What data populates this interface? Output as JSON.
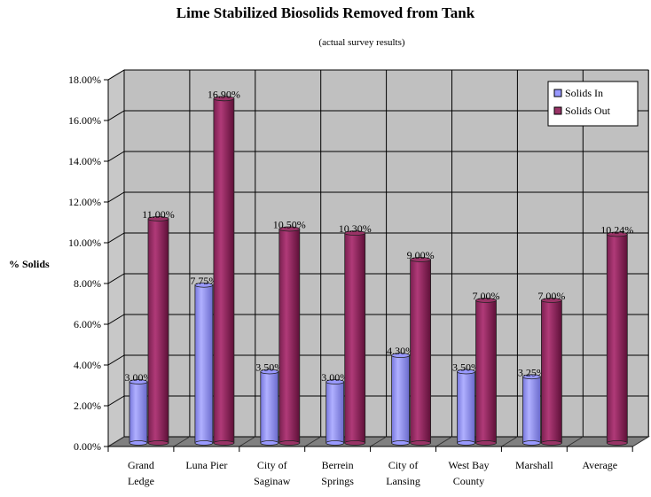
{
  "chart_data": {
    "type": "bar",
    "title": "Lime Stabilized Biosolids Removed from Tank",
    "subtitle": "(actual survey results)",
    "xlabel": "",
    "ylabel": "% Solids",
    "ylim": [
      0,
      18
    ],
    "yticks": [
      "0.00%",
      "2.00%",
      "4.00%",
      "6.00%",
      "8.00%",
      "10.00%",
      "12.00%",
      "14.00%",
      "16.00%",
      "18.00%"
    ],
    "grid": true,
    "legend_position": "top-right",
    "categories": [
      [
        "Grand",
        "Ledge"
      ],
      [
        "Luna Pier",
        ""
      ],
      [
        "City of",
        "Saginaw"
      ],
      [
        "Berrein",
        "Springs"
      ],
      [
        "City of",
        "Lansing"
      ],
      [
        "West Bay",
        "County"
      ],
      [
        "Marshall",
        ""
      ],
      [
        "Average",
        ""
      ]
    ],
    "series": [
      {
        "name": "Solids In",
        "color": "#9999ff",
        "values": [
          3.0,
          7.75,
          3.5,
          3.0,
          4.3,
          3.5,
          3.25,
          null
        ],
        "labels": [
          "3.00%",
          "7.75%",
          "3.50%",
          "3.00%",
          "4.30%",
          "3.50%",
          "3.25%",
          null
        ]
      },
      {
        "name": "Solids Out",
        "color": "#993366",
        "values": [
          11.0,
          16.9,
          10.5,
          10.3,
          9.0,
          7.0,
          7.0,
          10.24
        ],
        "labels": [
          "11.00%",
          "16.90%",
          "10.50%",
          "10.30%",
          "9.00%",
          "7.00%",
          "7.00%",
          "10.24%"
        ]
      }
    ]
  }
}
